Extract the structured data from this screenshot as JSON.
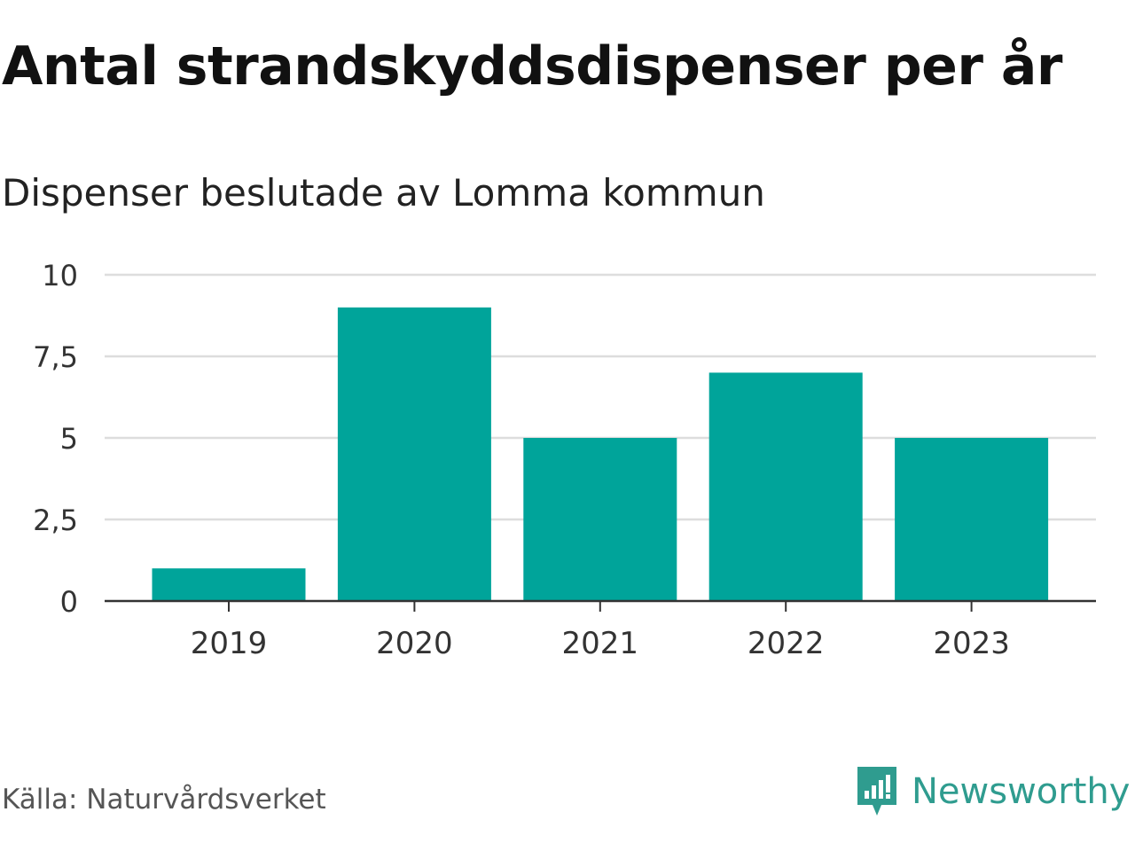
{
  "title": "Antal strandskyddsdispenser per år",
  "subtitle": "Dispenser beslutade av Lomma kommun",
  "source": "Källa: Naturvårdsverket",
  "brand": "Newsworthy",
  "colors": {
    "bar": "#00a49a",
    "grid": "#dddddd",
    "axis": "#333333",
    "brand": "#2f9c8f"
  },
  "chart_data": {
    "type": "bar",
    "categories": [
      "2019",
      "2020",
      "2021",
      "2022",
      "2023"
    ],
    "values": [
      1,
      9,
      5,
      7,
      5
    ],
    "ylim": [
      0,
      10
    ],
    "yticks": [
      0,
      2.5,
      5,
      7.5,
      10
    ],
    "ytick_labels": [
      "0",
      "2,5",
      "5",
      "7,5",
      "10"
    ],
    "xlabel": "",
    "ylabel": "",
    "grid": true
  }
}
